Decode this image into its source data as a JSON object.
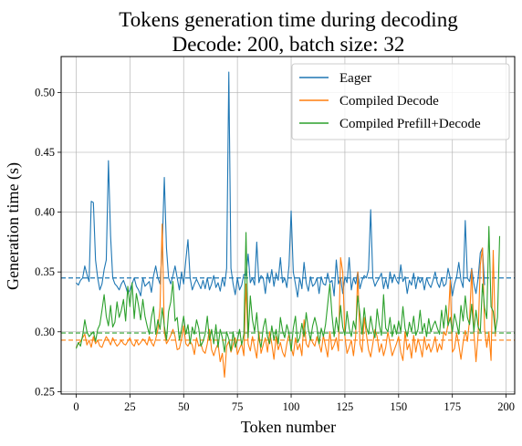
{
  "chart_data": {
    "type": "line",
    "title": "Tokens generation time during decoding",
    "subtitle": "Decode: 200, batch size: 32",
    "xlabel": "Token number",
    "ylabel": "Generation time (s)",
    "xlim": [
      -7,
      204
    ],
    "ylim": [
      0.248,
      0.53
    ],
    "xticks": [
      0,
      25,
      50,
      75,
      100,
      125,
      150,
      175,
      200
    ],
    "yticks": [
      0.25,
      0.3,
      0.35,
      0.4,
      0.45,
      0.5
    ],
    "yticklabels": [
      "0.25",
      "0.30",
      "0.35",
      "0.40",
      "0.45",
      "0.50"
    ],
    "grid": true,
    "legend_position": "upper-right",
    "series": [
      {
        "name": "Eager",
        "color": "#1f77b4",
        "mean": 0.345,
        "values": [
          0.341,
          0.339,
          0.343,
          0.345,
          0.355,
          0.348,
          0.342,
          0.409,
          0.408,
          0.36,
          0.345,
          0.335,
          0.34,
          0.352,
          0.36,
          0.443,
          0.38,
          0.345,
          0.34,
          0.338,
          0.335,
          0.34,
          0.343,
          0.338,
          0.332,
          0.335,
          0.34,
          0.345,
          0.338,
          0.335,
          0.33,
          0.345,
          0.338,
          0.34,
          0.342,
          0.333,
          0.347,
          0.355,
          0.345,
          0.34,
          0.37,
          0.429,
          0.37,
          0.345,
          0.34,
          0.347,
          0.355,
          0.345,
          0.335,
          0.35,
          0.34,
          0.36,
          0.377,
          0.345,
          0.335,
          0.34,
          0.344,
          0.34,
          0.336,
          0.343,
          0.336,
          0.345,
          0.335,
          0.34,
          0.347,
          0.337,
          0.341,
          0.334,
          0.345,
          0.338,
          0.353,
          0.517,
          0.353,
          0.34,
          0.331,
          0.345,
          0.335,
          0.339,
          0.348,
          0.347,
          0.365,
          0.341,
          0.345,
          0.339,
          0.375,
          0.341,
          0.347,
          0.345,
          0.332,
          0.349,
          0.341,
          0.352,
          0.338,
          0.349,
          0.343,
          0.362,
          0.341,
          0.345,
          0.337,
          0.355,
          0.401,
          0.35,
          0.34,
          0.329,
          0.345,
          0.336,
          0.358,
          0.341,
          0.334,
          0.346,
          0.338,
          0.34,
          0.345,
          0.332,
          0.346,
          0.34,
          0.339,
          0.349,
          0.341,
          0.343,
          0.33,
          0.36,
          0.34,
          0.345,
          0.332,
          0.346,
          0.341,
          0.362,
          0.335,
          0.345,
          0.34,
          0.35,
          0.336,
          0.343,
          0.347,
          0.345,
          0.352,
          0.402,
          0.345,
          0.338,
          0.342,
          0.345,
          0.349,
          0.336,
          0.344,
          0.336,
          0.35,
          0.341,
          0.348,
          0.343,
          0.34,
          0.356,
          0.342,
          0.346,
          0.332,
          0.343,
          0.339,
          0.349,
          0.336,
          0.346,
          0.341,
          0.345,
          0.335,
          0.345,
          0.34,
          0.337,
          0.343,
          0.35,
          0.341,
          0.337,
          0.345,
          0.338,
          0.34,
          0.353,
          0.345,
          0.33,
          0.34,
          0.346,
          0.358,
          0.343,
          0.337,
          0.393,
          0.345,
          0.342,
          0.353,
          0.34,
          0.332,
          0.345,
          0.366,
          0.37,
          0.339
        ],
        "start_x": 0
      },
      {
        "name": "Compiled Decode",
        "color": "#ff7f0e",
        "mean": 0.293,
        "values": [
          0.287,
          0.29,
          0.292,
          0.295,
          0.298,
          0.289,
          0.293,
          0.287,
          0.296,
          0.29,
          0.293,
          0.288,
          0.287,
          0.292,
          0.296,
          0.293,
          0.289,
          0.295,
          0.291,
          0.288,
          0.29,
          0.293,
          0.29,
          0.289,
          0.292,
          0.295,
          0.29,
          0.288,
          0.293,
          0.289,
          0.291,
          0.294,
          0.292,
          0.289,
          0.296,
          0.291,
          0.288,
          0.294,
          0.302,
          0.32,
          0.39,
          0.3,
          0.29,
          0.293,
          0.297,
          0.302,
          0.296,
          0.285,
          0.286,
          0.294,
          0.305,
          0.29,
          0.288,
          0.292,
          0.289,
          0.281,
          0.295,
          0.288,
          0.29,
          0.284,
          0.282,
          0.29,
          0.302,
          0.285,
          0.28,
          0.286,
          0.29,
          0.275,
          0.282,
          0.262,
          0.288,
          0.292,
          0.283,
          0.289,
          0.295,
          0.281,
          0.286,
          0.29,
          0.28,
          0.34,
          0.29,
          0.284,
          0.296,
          0.287,
          0.278,
          0.3,
          0.282,
          0.289,
          0.295,
          0.283,
          0.3,
          0.29,
          0.277,
          0.296,
          0.285,
          0.291,
          0.283,
          0.279,
          0.29,
          0.298,
          0.287,
          0.28,
          0.295,
          0.285,
          0.29,
          0.28,
          0.31,
          0.29,
          0.287,
          0.295,
          0.291,
          0.288,
          0.296,
          0.29,
          0.283,
          0.297,
          0.288,
          0.279,
          0.3,
          0.285,
          0.289,
          0.295,
          0.284,
          0.362,
          0.35,
          0.296,
          0.282,
          0.287,
          0.293,
          0.28,
          0.296,
          0.35,
          0.29,
          0.283,
          0.312,
          0.298,
          0.285,
          0.279,
          0.29,
          0.302,
          0.296,
          0.283,
          0.29,
          0.28,
          0.287,
          0.3,
          0.29,
          0.28,
          0.285,
          0.29,
          0.296,
          0.283,
          0.276,
          0.3,
          0.285,
          0.29,
          0.278,
          0.297,
          0.283,
          0.294,
          0.288,
          0.279,
          0.296,
          0.285,
          0.29,
          0.283,
          0.288,
          0.296,
          0.283,
          0.29,
          0.285,
          0.3,
          0.297,
          0.306,
          0.343,
          0.283,
          0.286,
          0.299,
          0.289,
          0.277,
          0.291,
          0.301,
          0.292,
          0.31,
          0.352,
          0.3,
          0.275,
          0.298,
          0.356,
          0.37,
          0.302,
          0.287,
          0.3,
          0.276,
          0.368,
          0.296
        ],
        "start_x": 0
      },
      {
        "name": "Compiled Prefill+Decode",
        "color": "#2ca02c",
        "mean": 0.299,
        "values": [
          0.286,
          0.291,
          0.288,
          0.297,
          0.31,
          0.3,
          0.296,
          0.298,
          0.3,
          0.292,
          0.302,
          0.306,
          0.318,
          0.331,
          0.313,
          0.305,
          0.322,
          0.304,
          0.308,
          0.325,
          0.312,
          0.318,
          0.327,
          0.309,
          0.338,
          0.321,
          0.341,
          0.311,
          0.332,
          0.322,
          0.31,
          0.327,
          0.313,
          0.305,
          0.298,
          0.312,
          0.321,
          0.298,
          0.31,
          0.302,
          0.32,
          0.305,
          0.293,
          0.317,
          0.325,
          0.342,
          0.309,
          0.312,
          0.293,
          0.302,
          0.313,
          0.298,
          0.306,
          0.29,
          0.304,
          0.298,
          0.31,
          0.303,
          0.288,
          0.292,
          0.298,
          0.313,
          0.293,
          0.302,
          0.29,
          0.306,
          0.287,
          0.302,
          0.295,
          0.283,
          0.3,
          0.294,
          0.284,
          0.3,
          0.287,
          0.293,
          0.302,
          0.289,
          0.298,
          0.383,
          0.295,
          0.33,
          0.31,
          0.3,
          0.316,
          0.294,
          0.287,
          0.303,
          0.311,
          0.296,
          0.29,
          0.305,
          0.293,
          0.302,
          0.29,
          0.312,
          0.301,
          0.295,
          0.306,
          0.299,
          0.284,
          0.303,
          0.313,
          0.291,
          0.295,
          0.307,
          0.296,
          0.316,
          0.302,
          0.293,
          0.305,
          0.312,
          0.304,
          0.29,
          0.303,
          0.296,
          0.306,
          0.323,
          0.34,
          0.314,
          0.296,
          0.312,
          0.3,
          0.322,
          0.304,
          0.297,
          0.317,
          0.303,
          0.296,
          0.309,
          0.302,
          0.33,
          0.315,
          0.298,
          0.32,
          0.304,
          0.298,
          0.313,
          0.302,
          0.295,
          0.319,
          0.306,
          0.297,
          0.331,
          0.303,
          0.3,
          0.312,
          0.296,
          0.306,
          0.298,
          0.309,
          0.3,
          0.321,
          0.303,
          0.296,
          0.308,
          0.3,
          0.313,
          0.297,
          0.302,
          0.318,
          0.3,
          0.307,
          0.296,
          0.311,
          0.3,
          0.305,
          0.309,
          0.303,
          0.298,
          0.318,
          0.303,
          0.322,
          0.305,
          0.312,
          0.3,
          0.315,
          0.307,
          0.298,
          0.322,
          0.309,
          0.33,
          0.312,
          0.306,
          0.323,
          0.3,
          0.318,
          0.304,
          0.3,
          0.34,
          0.32,
          0.311,
          0.388,
          0.321,
          0.317,
          0.3,
          0.312,
          0.38
        ],
        "start_x": 0
      }
    ]
  }
}
